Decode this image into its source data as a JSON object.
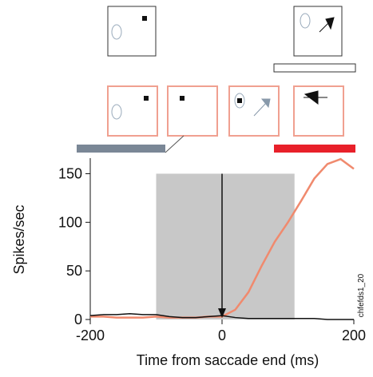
{
  "chart_data": {
    "type": "line",
    "xlabel": "Time from saccade end (ms)",
    "ylabel": "Spikes/sec",
    "annotation": "chfefds1_20",
    "x": [
      -200,
      -180,
      -160,
      -140,
      -120,
      -100,
      -80,
      -60,
      -40,
      -20,
      0,
      20,
      40,
      60,
      80,
      100,
      120,
      140,
      160,
      180,
      200
    ],
    "series": [
      {
        "color": "#f08a6e",
        "values": [
          3,
          3,
          2,
          2,
          2,
          3,
          2,
          2,
          2,
          3,
          3,
          10,
          28,
          55,
          80,
          100,
          122,
          145,
          160,
          165,
          155
        ]
      },
      {
        "color": "#111111",
        "values": [
          4,
          5,
          5,
          6,
          5,
          5,
          3,
          2,
          2,
          3,
          4,
          2,
          1,
          1,
          1,
          1,
          1,
          1,
          0,
          0,
          0
        ]
      }
    ],
    "shade": {
      "x": [
        -100,
        110
      ],
      "y": [
        0,
        150
      ],
      "color": "#c8c8c8"
    },
    "xlim": [
      -200,
      200
    ],
    "ylim": [
      0,
      166
    ],
    "xticks": [
      -200,
      0,
      200
    ],
    "yticks": [
      0,
      50,
      100,
      150
    ]
  }
}
